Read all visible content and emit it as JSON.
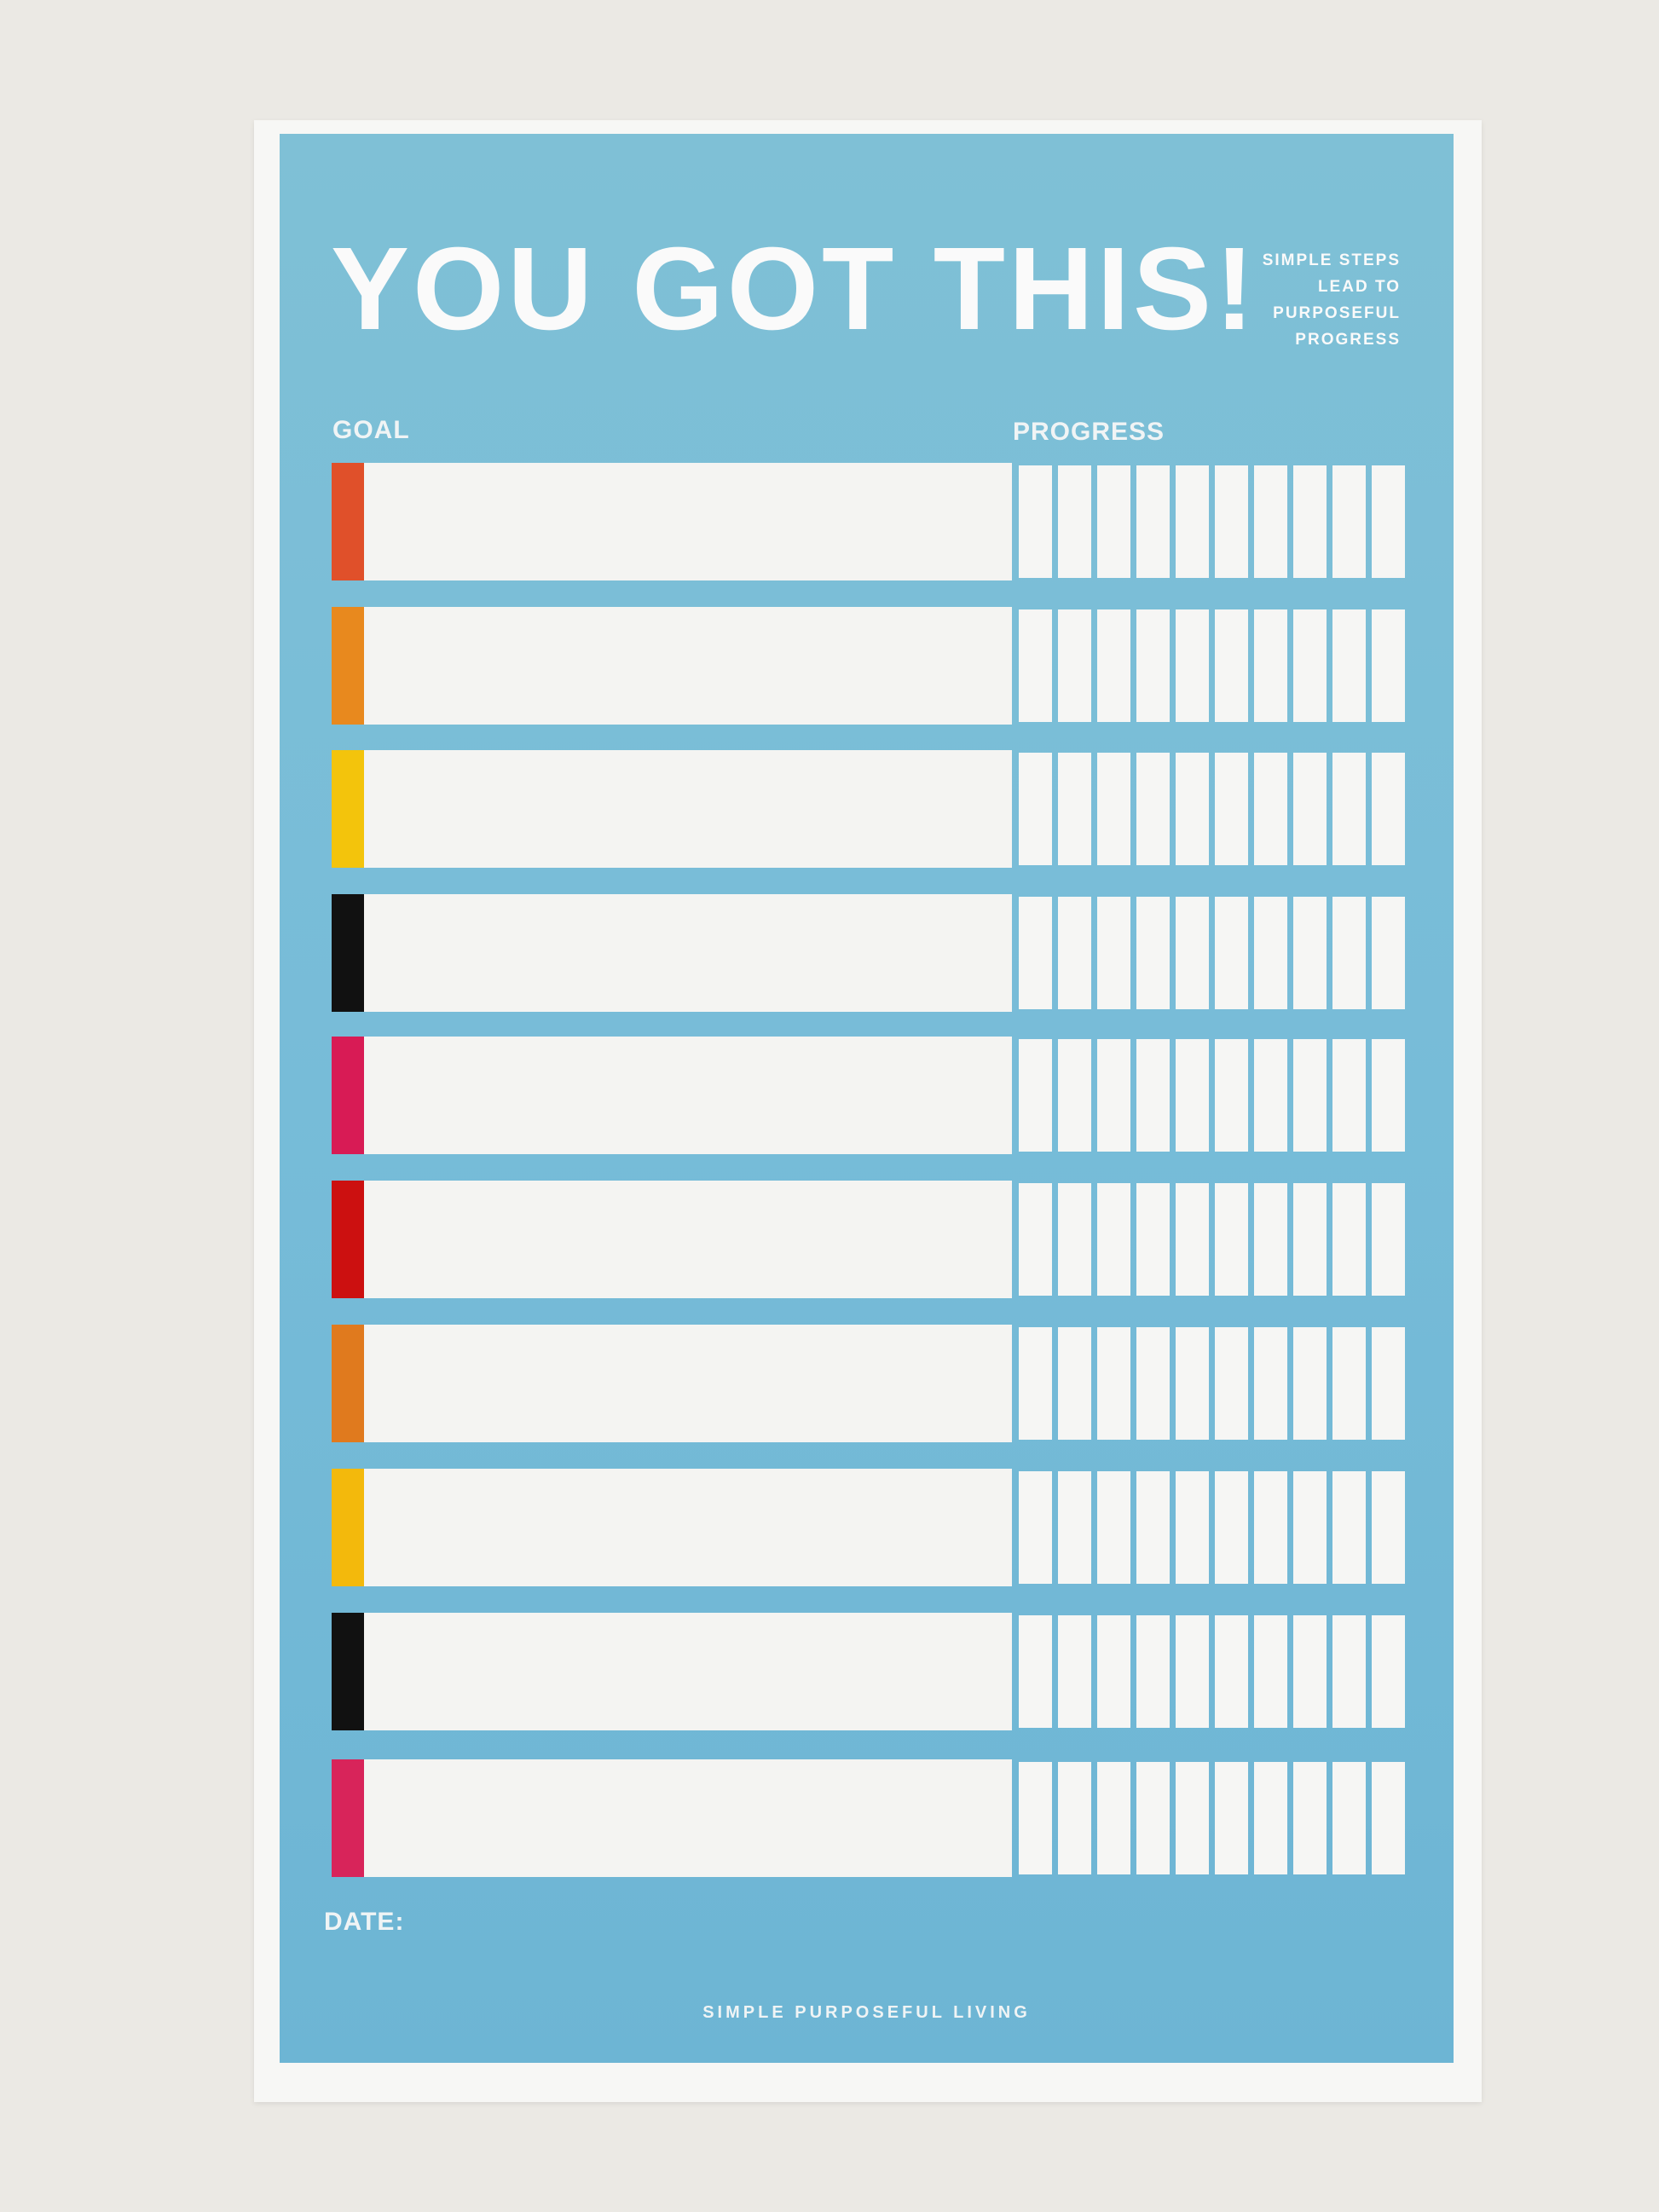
{
  "title": "YOU GOT THIS!",
  "tagline": [
    "SIMPLE STEPS",
    "LEAD TO",
    "PURPOSEFUL",
    "PROGRESS"
  ],
  "headers": {
    "goal": "GOAL",
    "progress": "PROGRESS"
  },
  "rows": [
    {
      "color": "#e0502a",
      "goal": "",
      "progress_checked": 0
    },
    {
      "color": "#e8891e",
      "goal": "",
      "progress_checked": 0
    },
    {
      "color": "#f3c40c",
      "goal": "",
      "progress_checked": 0
    },
    {
      "color": "#111111",
      "goal": "",
      "progress_checked": 0
    },
    {
      "color": "#d81b55",
      "goal": "",
      "progress_checked": 0
    },
    {
      "color": "#cc1010",
      "goal": "",
      "progress_checked": 0
    },
    {
      "color": "#e07a1e",
      "goal": "",
      "progress_checked": 0
    },
    {
      "color": "#f3b90c",
      "goal": "",
      "progress_checked": 0
    },
    {
      "color": "#111111",
      "goal": "",
      "progress_checked": 0
    },
    {
      "color": "#d8245a",
      "goal": "",
      "progress_checked": 0
    }
  ],
  "progress_cells_per_row": 10,
  "date_label": "DATE:",
  "footer": "SIMPLE PURPOSEFUL LIVING",
  "colors": {
    "panel": "#77bcd8",
    "paper": "#f7f7f5",
    "background": "#ebe9e4"
  }
}
